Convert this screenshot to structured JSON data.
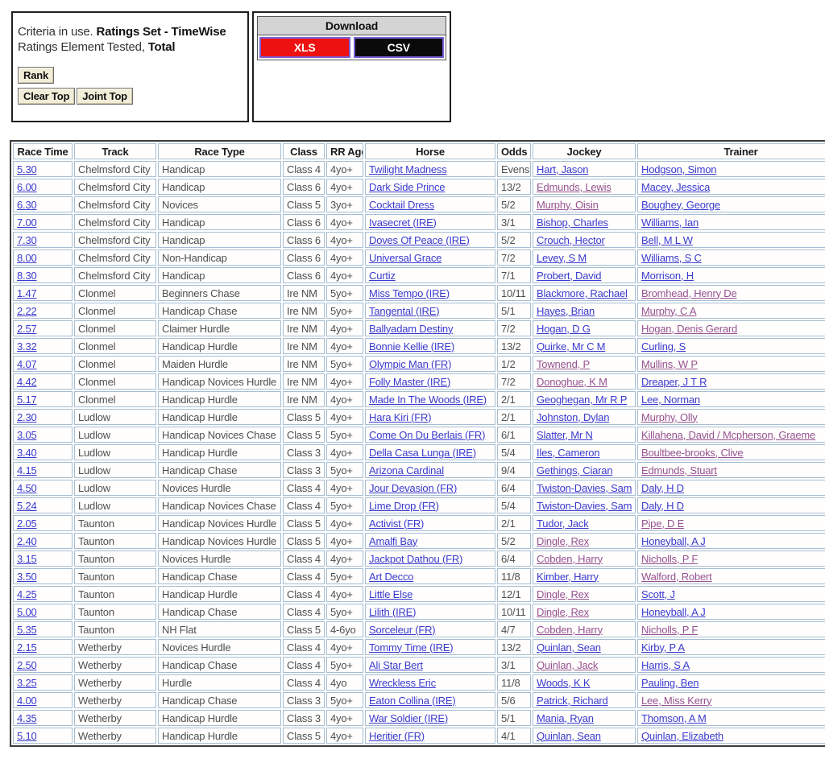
{
  "criteria_panel": {
    "line1_normal": "Criteria in use. ",
    "line1_bold": "Ratings Set - TimeWise",
    "line2_normal": "Ratings Element Tested, ",
    "line2_bold": "Total",
    "buttons": {
      "rank": "Rank",
      "clear_top": "Clear Top",
      "joint_top": "Joint Top"
    }
  },
  "download_panel": {
    "title": "Download",
    "buttons": [
      {
        "label": "XLS",
        "bg": "#ee1111",
        "fg": "#ffffff"
      },
      {
        "label": "CSV",
        "bg": "#0a0a0a",
        "fg": "#ffffff"
      }
    ]
  },
  "colors": {
    "link_blue": "#3a3ace",
    "link_visited": "#96518f",
    "cell_border": "#a6bdd1",
    "table_border": "#3c3c3c",
    "xls_red": "#ee1111",
    "csv_black": "#0a0a0a",
    "download_button_border": "#7a5fd6",
    "download_header_bg": "#d4d4d4",
    "button_cream": "#f2edd8"
  },
  "table": {
    "columns": [
      {
        "label": "Race Time",
        "key": "time",
        "kind": "link",
        "name": "race-time"
      },
      {
        "label": "Track",
        "key": "track",
        "kind": "text",
        "name": "track"
      },
      {
        "label": "Race Type",
        "key": "race_type",
        "kind": "text",
        "name": "race-type"
      },
      {
        "label": "Class",
        "key": "race_class",
        "kind": "text",
        "name": "race-class"
      },
      {
        "label": "RR Age",
        "key": "rr_age",
        "kind": "text",
        "name": "rr-age"
      },
      {
        "label": "Horse",
        "key": "horse",
        "kind": "link",
        "name": "horse"
      },
      {
        "label": "Odds",
        "key": "odds",
        "kind": "text",
        "name": "odds"
      },
      {
        "label": "Jockey",
        "key": "jockey",
        "kind": "link",
        "name": "jockey",
        "visited_key": "jockey_visited"
      },
      {
        "label": "Trainer",
        "key": "trainer",
        "kind": "link",
        "name": "trainer",
        "visited_key": "trainer_visited"
      }
    ],
    "rows": [
      {
        "time": "5.30",
        "track": "Chelmsford City",
        "race_type": "Handicap",
        "race_class": "Class 4",
        "rr_age": "4yo+",
        "horse": "Twilight Madness",
        "odds": "Evens",
        "jockey": "Hart, Jason",
        "jockey_visited": false,
        "trainer": "Hodgson, Simon",
        "trainer_visited": false
      },
      {
        "time": "6.00",
        "track": "Chelmsford City",
        "race_type": "Handicap",
        "race_class": "Class 6",
        "rr_age": "4yo+",
        "horse": "Dark Side Prince",
        "odds": "13/2",
        "jockey": "Edmunds, Lewis",
        "jockey_visited": true,
        "trainer": "Macey, Jessica",
        "trainer_visited": false
      },
      {
        "time": "6.30",
        "track": "Chelmsford City",
        "race_type": "Novices",
        "race_class": "Class 5",
        "rr_age": "3yo+",
        "horse": "Cocktail Dress",
        "odds": "5/2",
        "jockey": "Murphy, Oisin",
        "jockey_visited": true,
        "trainer": "Boughey, George",
        "trainer_visited": false
      },
      {
        "time": "7.00",
        "track": "Chelmsford City",
        "race_type": "Handicap",
        "race_class": "Class 6",
        "rr_age": "4yo+",
        "horse": "Ivasecret (IRE)",
        "odds": "3/1",
        "jockey": "Bishop, Charles",
        "jockey_visited": false,
        "trainer": "Williams, Ian",
        "trainer_visited": false
      },
      {
        "time": "7.30",
        "track": "Chelmsford City",
        "race_type": "Handicap",
        "race_class": "Class 6",
        "rr_age": "4yo+",
        "horse": "Doves Of Peace (IRE)",
        "odds": "5/2",
        "jockey": "Crouch, Hector",
        "jockey_visited": false,
        "trainer": "Bell, M L W",
        "trainer_visited": false
      },
      {
        "time": "8.00",
        "track": "Chelmsford City",
        "race_type": "Non-Handicap",
        "race_class": "Class 6",
        "rr_age": "4yo+",
        "horse": "Universal Grace",
        "odds": "7/2",
        "jockey": "Levey, S M",
        "jockey_visited": false,
        "trainer": "Williams, S C",
        "trainer_visited": false
      },
      {
        "time": "8.30",
        "track": "Chelmsford City",
        "race_type": "Handicap",
        "race_class": "Class 6",
        "rr_age": "4yo+",
        "horse": "Curtiz",
        "odds": "7/1",
        "jockey": "Probert, David",
        "jockey_visited": false,
        "trainer": "Morrison, H",
        "trainer_visited": false
      },
      {
        "time": "1.47",
        "track": "Clonmel",
        "race_type": "Beginners Chase",
        "race_class": "Ire NM",
        "rr_age": "5yo+",
        "horse": "Miss Tempo (IRE)",
        "odds": "10/11",
        "jockey": "Blackmore, Rachael",
        "jockey_visited": false,
        "trainer": "Bromhead, Henry De",
        "trainer_visited": true
      },
      {
        "time": "2.22",
        "track": "Clonmel",
        "race_type": "Handicap Chase",
        "race_class": "Ire NM",
        "rr_age": "5yo+",
        "horse": "Tangental (IRE)",
        "odds": "5/1",
        "jockey": "Hayes, Brian",
        "jockey_visited": false,
        "trainer": "Murphy, C A",
        "trainer_visited": true
      },
      {
        "time": "2.57",
        "track": "Clonmel",
        "race_type": "Claimer Hurdle",
        "race_class": "Ire NM",
        "rr_age": "4yo+",
        "horse": "Ballyadam Destiny",
        "odds": "7/2",
        "jockey": "Hogan, D G",
        "jockey_visited": false,
        "trainer": "Hogan, Denis Gerard",
        "trainer_visited": true
      },
      {
        "time": "3.32",
        "track": "Clonmel",
        "race_type": "Handicap Hurdle",
        "race_class": "Ire NM",
        "rr_age": "4yo+",
        "horse": "Bonnie Kellie (IRE)",
        "odds": "13/2",
        "jockey": "Quirke, Mr C M",
        "jockey_visited": false,
        "trainer": "Curling, S",
        "trainer_visited": false
      },
      {
        "time": "4.07",
        "track": "Clonmel",
        "race_type": "Maiden Hurdle",
        "race_class": "Ire NM",
        "rr_age": "5yo+",
        "horse": "Olympic Man (FR)",
        "odds": "1/2",
        "jockey": "Townend, P",
        "jockey_visited": true,
        "trainer": "Mullins, W P",
        "trainer_visited": true
      },
      {
        "time": "4.42",
        "track": "Clonmel",
        "race_type": "Handicap Novices Hurdle",
        "race_class": "Ire NM",
        "rr_age": "4yo+",
        "horse": "Folly Master (IRE)",
        "odds": "7/2",
        "jockey": "Donoghue, K M",
        "jockey_visited": true,
        "trainer": "Dreaper, J T R",
        "trainer_visited": false
      },
      {
        "time": "5.17",
        "track": "Clonmel",
        "race_type": "Handicap Hurdle",
        "race_class": "Ire NM",
        "rr_age": "4yo+",
        "horse": "Made In The Woods (IRE)",
        "odds": "2/1",
        "jockey": "Geoghegan, Mr R P",
        "jockey_visited": false,
        "trainer": "Lee, Norman",
        "trainer_visited": false
      },
      {
        "time": "2.30",
        "track": "Ludlow",
        "race_type": "Handicap Hurdle",
        "race_class": "Class 5",
        "rr_age": "4yo+",
        "horse": "Hara Kiri (FR)",
        "odds": "2/1",
        "jockey": "Johnston, Dylan",
        "jockey_visited": false,
        "trainer": "Murphy, Olly",
        "trainer_visited": true
      },
      {
        "time": "3.05",
        "track": "Ludlow",
        "race_type": "Handicap Novices Chase",
        "race_class": "Class 5",
        "rr_age": "5yo+",
        "horse": "Come On Du Berlais (FR)",
        "odds": "6/1",
        "jockey": "Slatter, Mr N",
        "jockey_visited": false,
        "trainer": "Killahena, David / Mcpherson, Graeme",
        "trainer_visited": true
      },
      {
        "time": "3.40",
        "track": "Ludlow",
        "race_type": "Handicap Hurdle",
        "race_class": "Class 3",
        "rr_age": "4yo+",
        "horse": "Della Casa Lunga (IRE)",
        "odds": "5/4",
        "jockey": "Iles, Cameron",
        "jockey_visited": false,
        "trainer": "Boultbee-brooks, Clive",
        "trainer_visited": true
      },
      {
        "time": "4.15",
        "track": "Ludlow",
        "race_type": "Handicap Chase",
        "race_class": "Class 3",
        "rr_age": "5yo+",
        "horse": "Arizona Cardinal",
        "odds": "9/4",
        "jockey": "Gethings, Ciaran",
        "jockey_visited": false,
        "trainer": "Edmunds, Stuart",
        "trainer_visited": true
      },
      {
        "time": "4.50",
        "track": "Ludlow",
        "race_type": "Novices Hurdle",
        "race_class": "Class 4",
        "rr_age": "4yo+",
        "horse": "Jour Devasion (FR)",
        "odds": "6/4",
        "jockey": "Twiston-Davies, Sam",
        "jockey_visited": false,
        "trainer": "Daly, H D",
        "trainer_visited": false
      },
      {
        "time": "5.24",
        "track": "Ludlow",
        "race_type": "Handicap Novices Chase",
        "race_class": "Class 4",
        "rr_age": "5yo+",
        "horse": "Lime Drop (FR)",
        "odds": "5/4",
        "jockey": "Twiston-Davies, Sam",
        "jockey_visited": false,
        "trainer": "Daly, H D",
        "trainer_visited": false
      },
      {
        "time": "2.05",
        "track": "Taunton",
        "race_type": "Handicap Novices Hurdle",
        "race_class": "Class 5",
        "rr_age": "4yo+",
        "horse": "Activist (FR)",
        "odds": "2/1",
        "jockey": "Tudor, Jack",
        "jockey_visited": false,
        "trainer": "Pipe, D E",
        "trainer_visited": true
      },
      {
        "time": "2.40",
        "track": "Taunton",
        "race_type": "Handicap Novices Hurdle",
        "race_class": "Class 5",
        "rr_age": "4yo+",
        "horse": "Amalfi Bay",
        "odds": "5/2",
        "jockey": "Dingle, Rex",
        "jockey_visited": true,
        "trainer": "Honeyball, A J",
        "trainer_visited": false
      },
      {
        "time": "3.15",
        "track": "Taunton",
        "race_type": "Novices Hurdle",
        "race_class": "Class 4",
        "rr_age": "4yo+",
        "horse": "Jackpot Dathou (FR)",
        "odds": "6/4",
        "jockey": "Cobden, Harry",
        "jockey_visited": true,
        "trainer": "Nicholls, P F",
        "trainer_visited": true
      },
      {
        "time": "3.50",
        "track": "Taunton",
        "race_type": "Handicap Chase",
        "race_class": "Class 4",
        "rr_age": "5yo+",
        "horse": "Art Decco",
        "odds": "11/8",
        "jockey": "Kimber, Harry",
        "jockey_visited": false,
        "trainer": "Walford, Robert",
        "trainer_visited": true
      },
      {
        "time": "4.25",
        "track": "Taunton",
        "race_type": "Handicap Hurdle",
        "race_class": "Class 4",
        "rr_age": "4yo+",
        "horse": "Little Else",
        "odds": "12/1",
        "jockey": "Dingle, Rex",
        "jockey_visited": true,
        "trainer": "Scott, J",
        "trainer_visited": false
      },
      {
        "time": "5.00",
        "track": "Taunton",
        "race_type": "Handicap Chase",
        "race_class": "Class 4",
        "rr_age": "5yo+",
        "horse": "Lilith (IRE)",
        "odds": "10/11",
        "jockey": "Dingle, Rex",
        "jockey_visited": true,
        "trainer": "Honeyball, A J",
        "trainer_visited": false
      },
      {
        "time": "5.35",
        "track": "Taunton",
        "race_type": "NH Flat",
        "race_class": "Class 5",
        "rr_age": "4-6yo",
        "horse": "Sorceleur (FR)",
        "odds": "4/7",
        "jockey": "Cobden, Harry",
        "jockey_visited": true,
        "trainer": "Nicholls, P F",
        "trainer_visited": true
      },
      {
        "time": "2.15",
        "track": "Wetherby",
        "race_type": "Novices Hurdle",
        "race_class": "Class 4",
        "rr_age": "4yo+",
        "horse": "Tommy Time (IRE)",
        "odds": "13/2",
        "jockey": "Quinlan, Sean",
        "jockey_visited": false,
        "trainer": "Kirby, P A",
        "trainer_visited": false
      },
      {
        "time": "2.50",
        "track": "Wetherby",
        "race_type": "Handicap Chase",
        "race_class": "Class 4",
        "rr_age": "5yo+",
        "horse": "Ali Star Bert",
        "odds": "3/1",
        "jockey": "Quinlan, Jack",
        "jockey_visited": true,
        "trainer": "Harris, S A",
        "trainer_visited": false
      },
      {
        "time": "3.25",
        "track": "Wetherby",
        "race_type": "Hurdle",
        "race_class": "Class 4",
        "rr_age": "4yo",
        "horse": "Wreckless Eric",
        "odds": "11/8",
        "jockey": "Woods, K K",
        "jockey_visited": false,
        "trainer": "Pauling, Ben",
        "trainer_visited": false
      },
      {
        "time": "4.00",
        "track": "Wetherby",
        "race_type": "Handicap Chase",
        "race_class": "Class 3",
        "rr_age": "5yo+",
        "horse": "Eaton Collina (IRE)",
        "odds": "5/6",
        "jockey": "Patrick, Richard",
        "jockey_visited": false,
        "trainer": "Lee, Miss Kerry",
        "trainer_visited": true
      },
      {
        "time": "4.35",
        "track": "Wetherby",
        "race_type": "Handicap Hurdle",
        "race_class": "Class 3",
        "rr_age": "4yo+",
        "horse": "War Soldier (IRE)",
        "odds": "5/1",
        "jockey": "Mania, Ryan",
        "jockey_visited": false,
        "trainer": "Thomson, A M",
        "trainer_visited": false
      },
      {
        "time": "5.10",
        "track": "Wetherby",
        "race_type": "Handicap Hurdle",
        "race_class": "Class 5",
        "rr_age": "4yo+",
        "horse": "Heritier (FR)",
        "odds": "4/1",
        "jockey": "Quinlan, Sean",
        "jockey_visited": false,
        "trainer": "Quinlan, Elizabeth",
        "trainer_visited": false
      }
    ]
  }
}
